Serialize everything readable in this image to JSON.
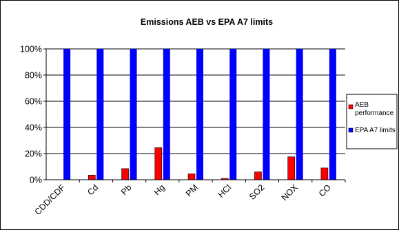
{
  "chart_data": {
    "type": "bar",
    "title": "Emissions AEB vs EPA A7 limits",
    "xlabel": "",
    "ylabel": "",
    "categories": [
      "CDD/CDF",
      "Cd",
      "Pb",
      "Hg",
      "PM",
      "HCl",
      "SO2",
      "NOX",
      "CO"
    ],
    "series": [
      {
        "name": "AEB performance",
        "color": "#ff0000",
        "values": [
          0,
          3.5,
          8.5,
          24.5,
          4.5,
          1,
          6,
          17.5,
          9
        ]
      },
      {
        "name": "EPA A7 limits",
        "color": "#0000ff",
        "values": [
          100,
          100,
          100,
          100,
          100,
          100,
          100,
          100,
          100
        ]
      }
    ],
    "ylim": [
      0,
      100
    ],
    "yticks": [
      "0%",
      "20%",
      "40%",
      "60%",
      "80%",
      "100%"
    ],
    "ytick_values": [
      0,
      20,
      40,
      60,
      80,
      100
    ],
    "grid": true,
    "legend_position": "right",
    "plot_background": "#ffffff"
  }
}
